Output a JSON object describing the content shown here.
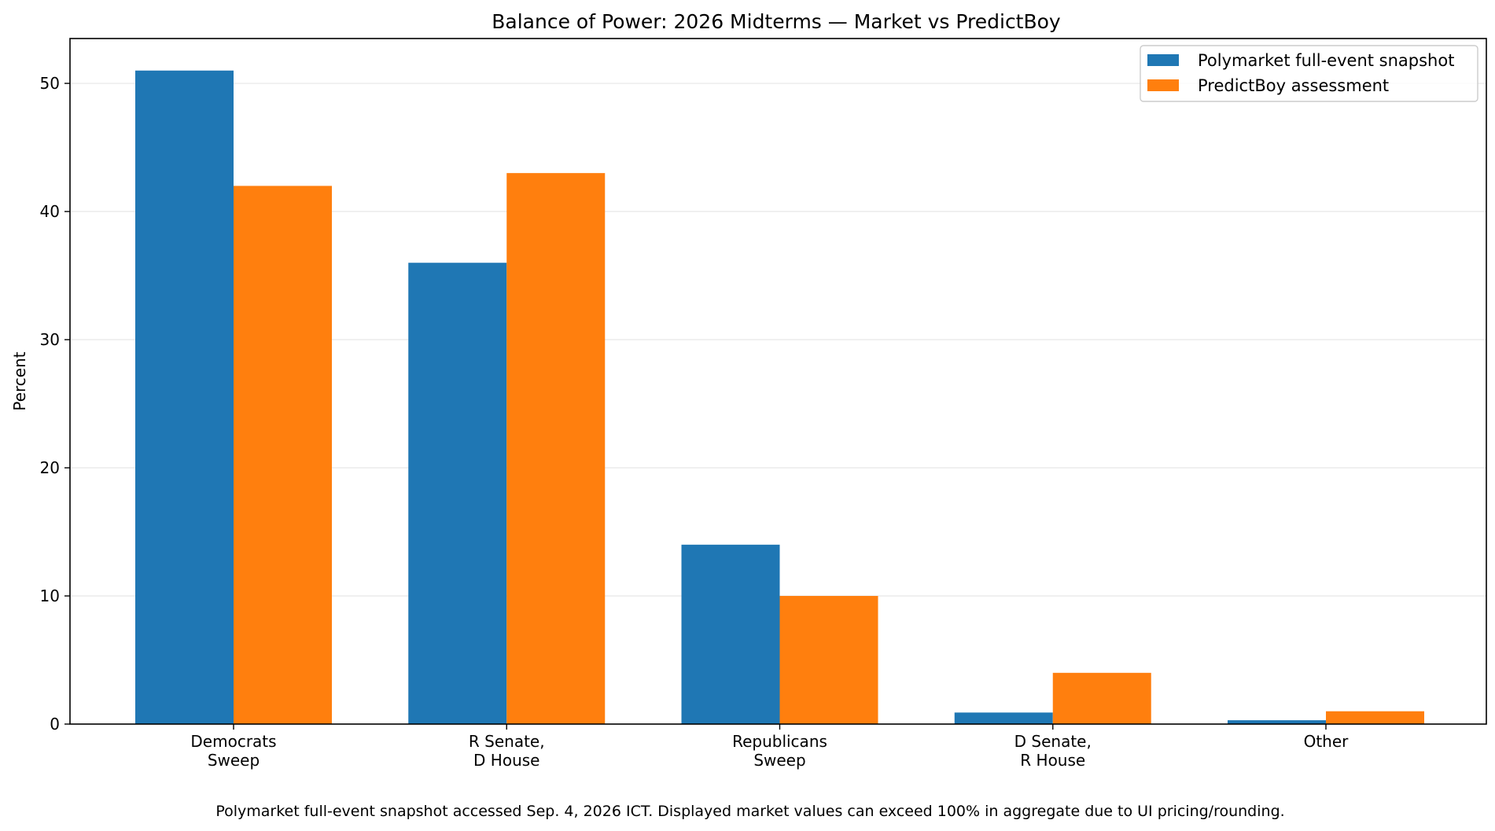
{
  "chart_data": {
    "type": "bar",
    "title": "Balance of Power: 2026 Midterms — Market vs PredictBoy",
    "xlabel": "",
    "ylabel": "Percent",
    "ylim": [
      0,
      53.5
    ],
    "yticks": [
      0,
      10,
      20,
      30,
      40,
      50
    ],
    "grid": "horizontal",
    "legend_position": "top-right",
    "categories": [
      [
        "Democrats",
        "Sweep"
      ],
      [
        "R Senate,",
        "D House"
      ],
      [
        "Republicans",
        "Sweep"
      ],
      [
        "D Senate,",
        "R House"
      ],
      [
        "Other"
      ]
    ],
    "series": [
      {
        "name": "Polymarket full-event snapshot",
        "color": "#1f77b4",
        "values": [
          51,
          36,
          14,
          0.9,
          0.3
        ]
      },
      {
        "name": "PredictBoy assessment",
        "color": "#ff7f0e",
        "values": [
          42,
          43,
          10,
          4,
          1
        ]
      }
    ],
    "footnote": "Polymarket full-event snapshot accessed Sep. 4, 2026 ICT. Displayed market values can exceed 100% in aggregate due to UI pricing/rounding."
  }
}
